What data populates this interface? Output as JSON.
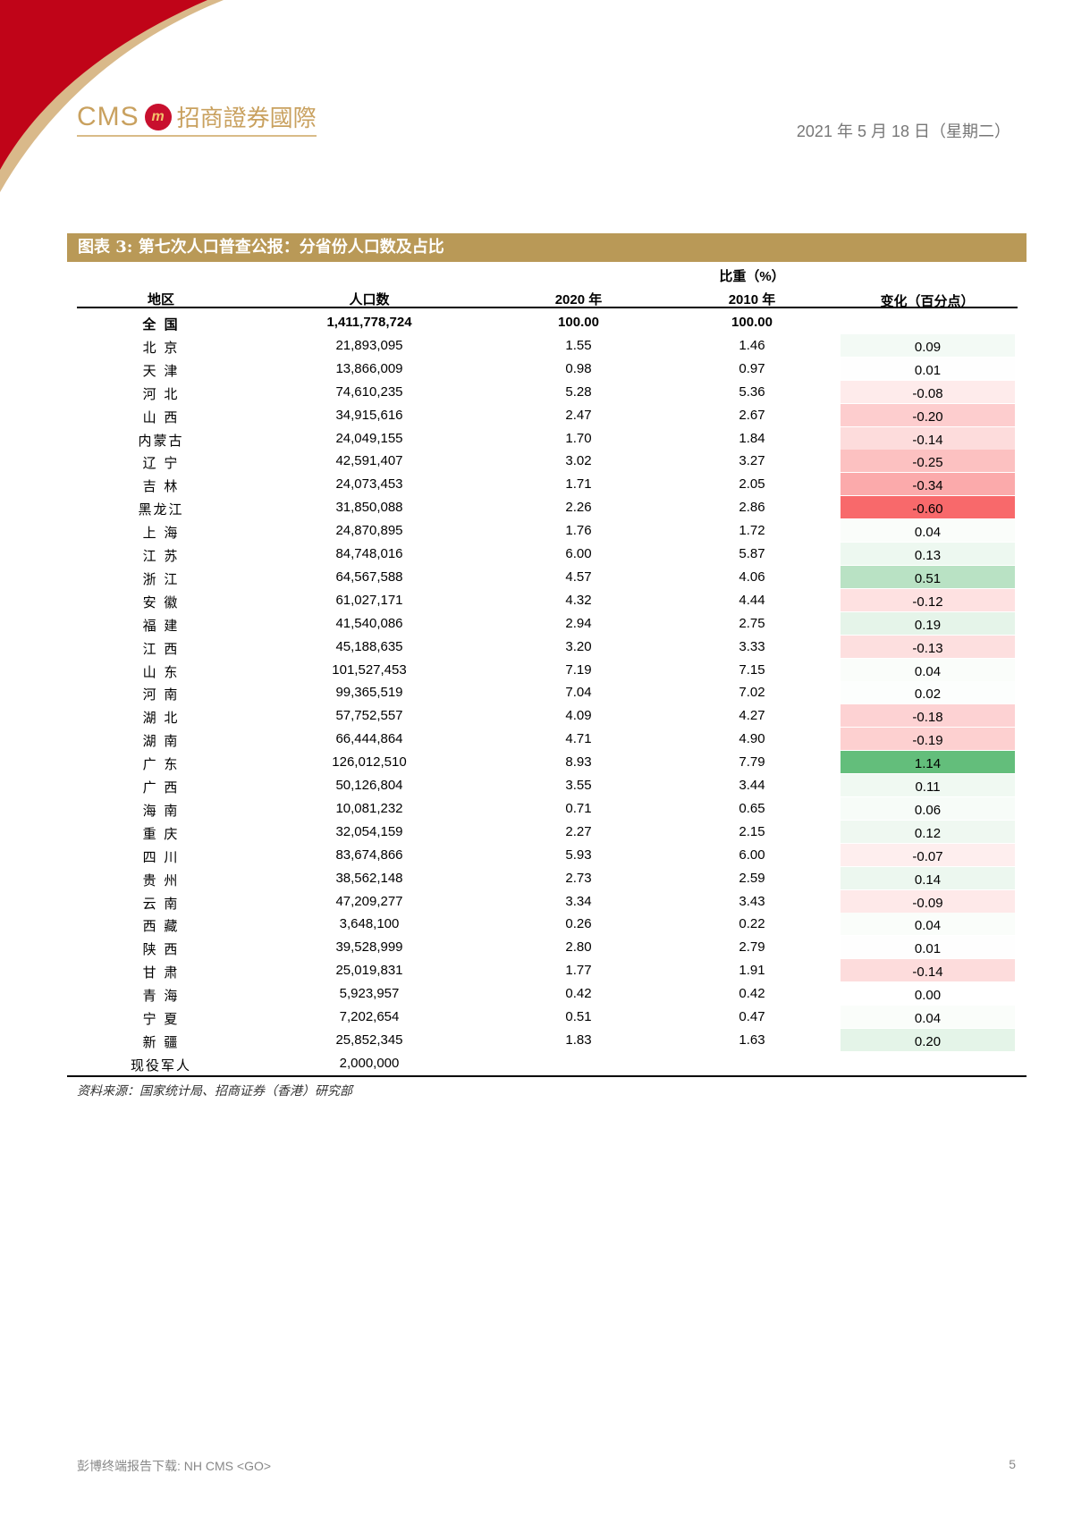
{
  "header": {
    "logo_en": "CMS",
    "logo_cn": "招商證券國際",
    "date": "2021 年 5 月 18 日（星期二）"
  },
  "figure": {
    "title": "图表 3: 第七次人口普查公报：分省份人口数及占比",
    "columns": {
      "region": "地区",
      "population": "人口数",
      "share_group": "比重（%）",
      "y2020": "2020 年",
      "y2010": "2010 年",
      "change": "变化（百分点）"
    },
    "rows": [
      {
        "region": "全 国",
        "population": "1,411,778,724",
        "y2020": "100.00",
        "y2010": "100.00",
        "change": ""
      },
      {
        "region": "北 京",
        "population": "21,893,095",
        "y2020": "1.55",
        "y2010": "1.46",
        "change": "0.09"
      },
      {
        "region": "天 津",
        "population": "13,866,009",
        "y2020": "0.98",
        "y2010": "0.97",
        "change": "0.01"
      },
      {
        "region": "河 北",
        "population": "74,610,235",
        "y2020": "5.28",
        "y2010": "5.36",
        "change": "-0.08"
      },
      {
        "region": "山 西",
        "population": "34,915,616",
        "y2020": "2.47",
        "y2010": "2.67",
        "change": "-0.20"
      },
      {
        "region": "内蒙古",
        "population": "24,049,155",
        "y2020": "1.70",
        "y2010": "1.84",
        "change": "-0.14"
      },
      {
        "region": "辽 宁",
        "population": "42,591,407",
        "y2020": "3.02",
        "y2010": "3.27",
        "change": "-0.25"
      },
      {
        "region": "吉 林",
        "population": "24,073,453",
        "y2020": "1.71",
        "y2010": "2.05",
        "change": "-0.34"
      },
      {
        "region": "黑龙江",
        "population": "31,850,088",
        "y2020": "2.26",
        "y2010": "2.86",
        "change": "-0.60"
      },
      {
        "region": "上 海",
        "population": "24,870,895",
        "y2020": "1.76",
        "y2010": "1.72",
        "change": "0.04"
      },
      {
        "region": "江 苏",
        "population": "84,748,016",
        "y2020": "6.00",
        "y2010": "5.87",
        "change": "0.13"
      },
      {
        "region": "浙 江",
        "population": "64,567,588",
        "y2020": "4.57",
        "y2010": "4.06",
        "change": "0.51"
      },
      {
        "region": "安 徽",
        "population": "61,027,171",
        "y2020": "4.32",
        "y2010": "4.44",
        "change": "-0.12"
      },
      {
        "region": "福 建",
        "population": "41,540,086",
        "y2020": "2.94",
        "y2010": "2.75",
        "change": "0.19"
      },
      {
        "region": "江 西",
        "population": "45,188,635",
        "y2020": "3.20",
        "y2010": "3.33",
        "change": "-0.13"
      },
      {
        "region": "山 东",
        "population": "101,527,453",
        "y2020": "7.19",
        "y2010": "7.15",
        "change": "0.04"
      },
      {
        "region": "河 南",
        "population": "99,365,519",
        "y2020": "7.04",
        "y2010": "7.02",
        "change": "0.02"
      },
      {
        "region": "湖 北",
        "population": "57,752,557",
        "y2020": "4.09",
        "y2010": "4.27",
        "change": "-0.18"
      },
      {
        "region": "湖 南",
        "population": "66,444,864",
        "y2020": "4.71",
        "y2010": "4.90",
        "change": "-0.19"
      },
      {
        "region": "广 东",
        "population": "126,012,510",
        "y2020": "8.93",
        "y2010": "7.79",
        "change": "1.14"
      },
      {
        "region": "广 西",
        "population": "50,126,804",
        "y2020": "3.55",
        "y2010": "3.44",
        "change": "0.11"
      },
      {
        "region": "海 南",
        "population": "10,081,232",
        "y2020": "0.71",
        "y2010": "0.65",
        "change": "0.06"
      },
      {
        "region": "重 庆",
        "population": "32,054,159",
        "y2020": "2.27",
        "y2010": "2.15",
        "change": "0.12"
      },
      {
        "region": "四 川",
        "population": "83,674,866",
        "y2020": "5.93",
        "y2010": "6.00",
        "change": "-0.07"
      },
      {
        "region": "贵 州",
        "population": "38,562,148",
        "y2020": "2.73",
        "y2010": "2.59",
        "change": "0.14"
      },
      {
        "region": "云 南",
        "population": "47,209,277",
        "y2020": "3.34",
        "y2010": "3.43",
        "change": "-0.09"
      },
      {
        "region": "西 藏",
        "population": "3,648,100",
        "y2020": "0.26",
        "y2010": "0.22",
        "change": "0.04"
      },
      {
        "region": "陕 西",
        "population": "39,528,999",
        "y2020": "2.80",
        "y2010": "2.79",
        "change": "0.01"
      },
      {
        "region": "甘 肃",
        "population": "25,019,831",
        "y2020": "1.77",
        "y2010": "1.91",
        "change": "-0.14"
      },
      {
        "region": "青 海",
        "population": "5,923,957",
        "y2020": "0.42",
        "y2010": "0.42",
        "change": "0.00"
      },
      {
        "region": "宁 夏",
        "population": "7,202,654",
        "y2020": "0.51",
        "y2010": "0.47",
        "change": "0.04"
      },
      {
        "region": "新 疆",
        "population": "25,852,345",
        "y2020": "1.83",
        "y2010": "1.63",
        "change": "0.20"
      },
      {
        "region": "现役军人",
        "population": "2,000,000",
        "y2020": "",
        "y2010": "",
        "change": ""
      }
    ],
    "source": "资料来源：国家统计局、招商证券（香港）研究部"
  },
  "colors": {
    "brand_gold": "#b99957",
    "positive_max": "#63be7b",
    "negative_max": "#f8696b"
  },
  "footer": {
    "text": "彭博终端报告下载: NH CMS <GO>",
    "page": "5"
  }
}
